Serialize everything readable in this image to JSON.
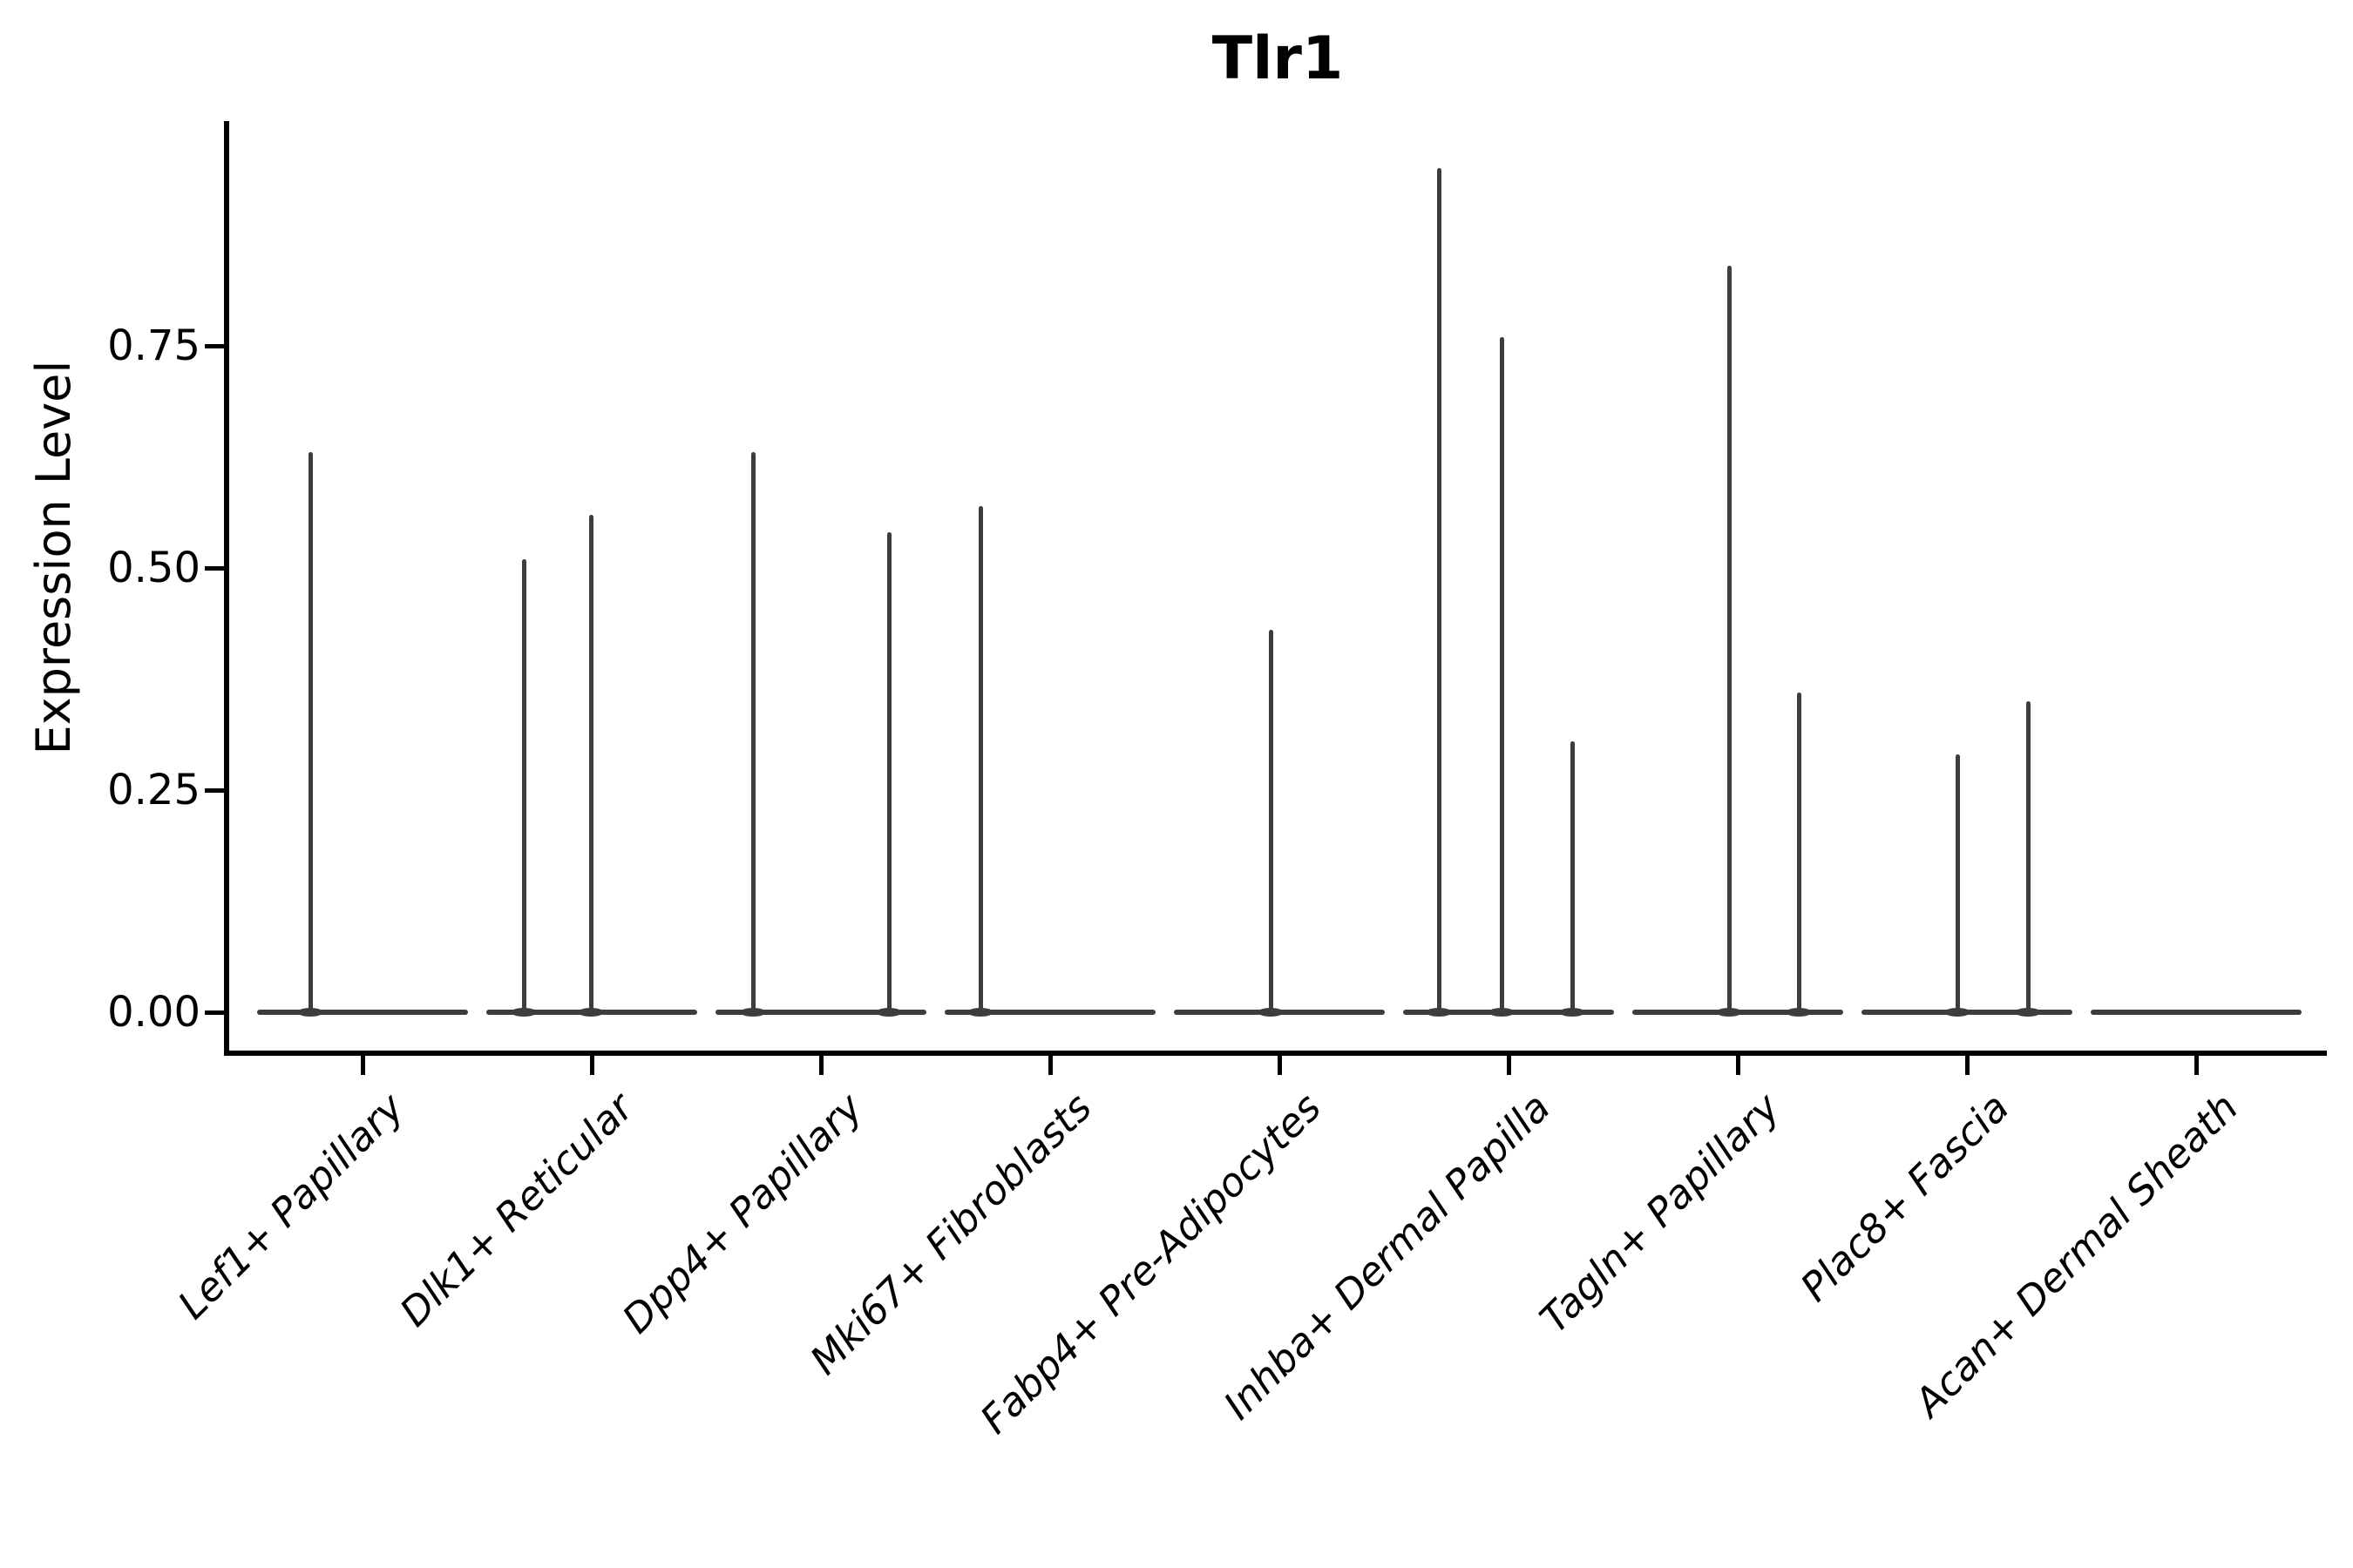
{
  "page": {
    "background": "#ffffff"
  },
  "chart_data": {
    "type": "violin",
    "title": "Tlr1",
    "ylabel": "Expression Level",
    "xlabel": "",
    "legend_position": "none",
    "grid": false,
    "ylim": [
      0,
      1.0
    ],
    "yticks": [
      0.0,
      0.25,
      0.5,
      0.75
    ],
    "ytick_labels": [
      "0.00",
      "0.25",
      "0.50",
      "0.75"
    ],
    "categories": [
      "Lef1+ Papillary",
      "Dlk1+ Reticular",
      "Dpp4+ Papillary",
      "Mki67+ Fibroblasts",
      "Fabp4+ Pre-Adipocytes",
      "Inhba+ Dermal Papilla",
      "Tagln+ Papillary",
      "Plac8+ Fascia",
      "Acan+ Dermal Sheath"
    ],
    "groups": [
      {
        "label": "Lef1+ Papillary",
        "spikes": [
          {
            "offset": -60,
            "value": 0.63
          }
        ]
      },
      {
        "label": "Dlk1+ Reticular",
        "spikes": [
          {
            "offset": -78,
            "value": 0.51
          },
          {
            "offset": -1,
            "value": 0.56
          }
        ]
      },
      {
        "label": "Dpp4+ Papillary",
        "spikes": [
          {
            "offset": -78,
            "value": 0.63
          },
          {
            "offset": 78,
            "value": 0.54
          }
        ]
      },
      {
        "label": "Mki67+ Fibroblasts",
        "spikes": [
          {
            "offset": -80,
            "value": 0.57
          }
        ]
      },
      {
        "label": "Fabp4+ Pre-Adipocytes",
        "spikes": [
          {
            "offset": -10,
            "value": 0.43
          }
        ]
      },
      {
        "label": "Inhba+ Dermal Papilla",
        "spikes": [
          {
            "offset": -80,
            "value": 0.95
          },
          {
            "offset": -8,
            "value": 0.76
          },
          {
            "offset": 73,
            "value": 0.305
          }
        ]
      },
      {
        "label": "Tagln+ Papillary",
        "spikes": [
          {
            "offset": -10,
            "value": 0.84
          },
          {
            "offset": 70,
            "value": 0.36
          }
        ]
      },
      {
        "label": "Plac8+ Fascia",
        "spikes": [
          {
            "offset": -11,
            "value": 0.29
          },
          {
            "offset": 70,
            "value": 0.35
          }
        ]
      },
      {
        "label": "Acan+ Dermal Sheath",
        "spikes": []
      }
    ],
    "violin_color": "#3d3d3d",
    "axis_color": "#000000",
    "text_color": "#000000"
  }
}
